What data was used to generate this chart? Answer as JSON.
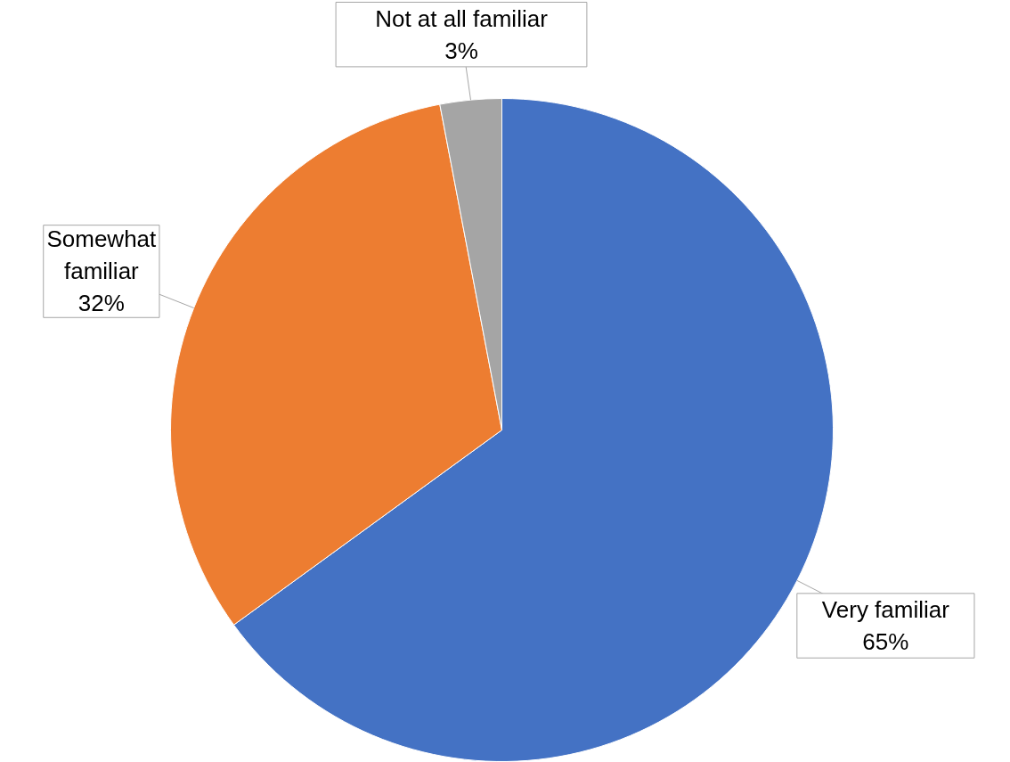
{
  "chart_data": {
    "type": "pie",
    "categories": [
      "Very familiar",
      "Somewhat familiar",
      "Not at all familiar"
    ],
    "values": [
      65,
      32,
      3
    ],
    "colors": [
      "#4472c4",
      "#ed7d31",
      "#a5a5a5"
    ],
    "value_labels": [
      "65%",
      "32%",
      "3%"
    ]
  }
}
